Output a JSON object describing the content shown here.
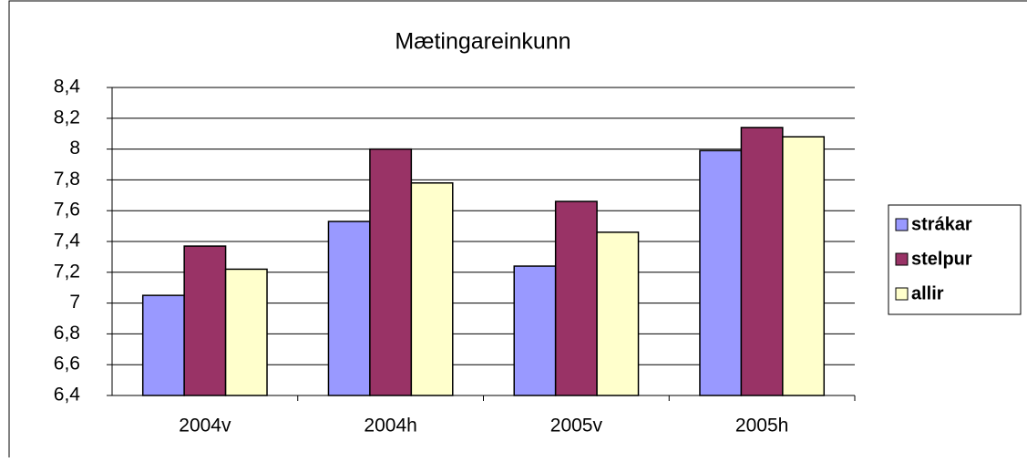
{
  "chart_data": {
    "type": "bar",
    "title": "Mætingareinkunn",
    "categories": [
      "2004v",
      "2004h",
      "2005v",
      "2005h"
    ],
    "series": [
      {
        "name": "strákar",
        "color": "#9999ff",
        "values": [
          7.05,
          7.53,
          7.24,
          7.99
        ]
      },
      {
        "name": "stelpur",
        "color": "#993366",
        "values": [
          7.37,
          8.0,
          7.66,
          8.14
        ]
      },
      {
        "name": "allir",
        "color": "#ffffcc",
        "values": [
          7.22,
          7.78,
          7.46,
          8.08
        ]
      }
    ],
    "ylim": [
      6.4,
      8.4
    ],
    "yticks": [
      {
        "value": 6.4,
        "label": "6,4"
      },
      {
        "value": 6.6,
        "label": "6,6"
      },
      {
        "value": 6.8,
        "label": "6,8"
      },
      7,
      {
        "value": 7.2,
        "label": "7,2"
      },
      {
        "value": 7.4,
        "label": "7,4"
      },
      {
        "value": 7.6,
        "label": "7,6"
      },
      {
        "value": 7.8,
        "label": "7,8"
      },
      8,
      {
        "value": 8.2,
        "label": "8,2"
      },
      {
        "value": 8.4,
        "label": "8,4"
      }
    ],
    "grid": true,
    "legend": "right"
  }
}
